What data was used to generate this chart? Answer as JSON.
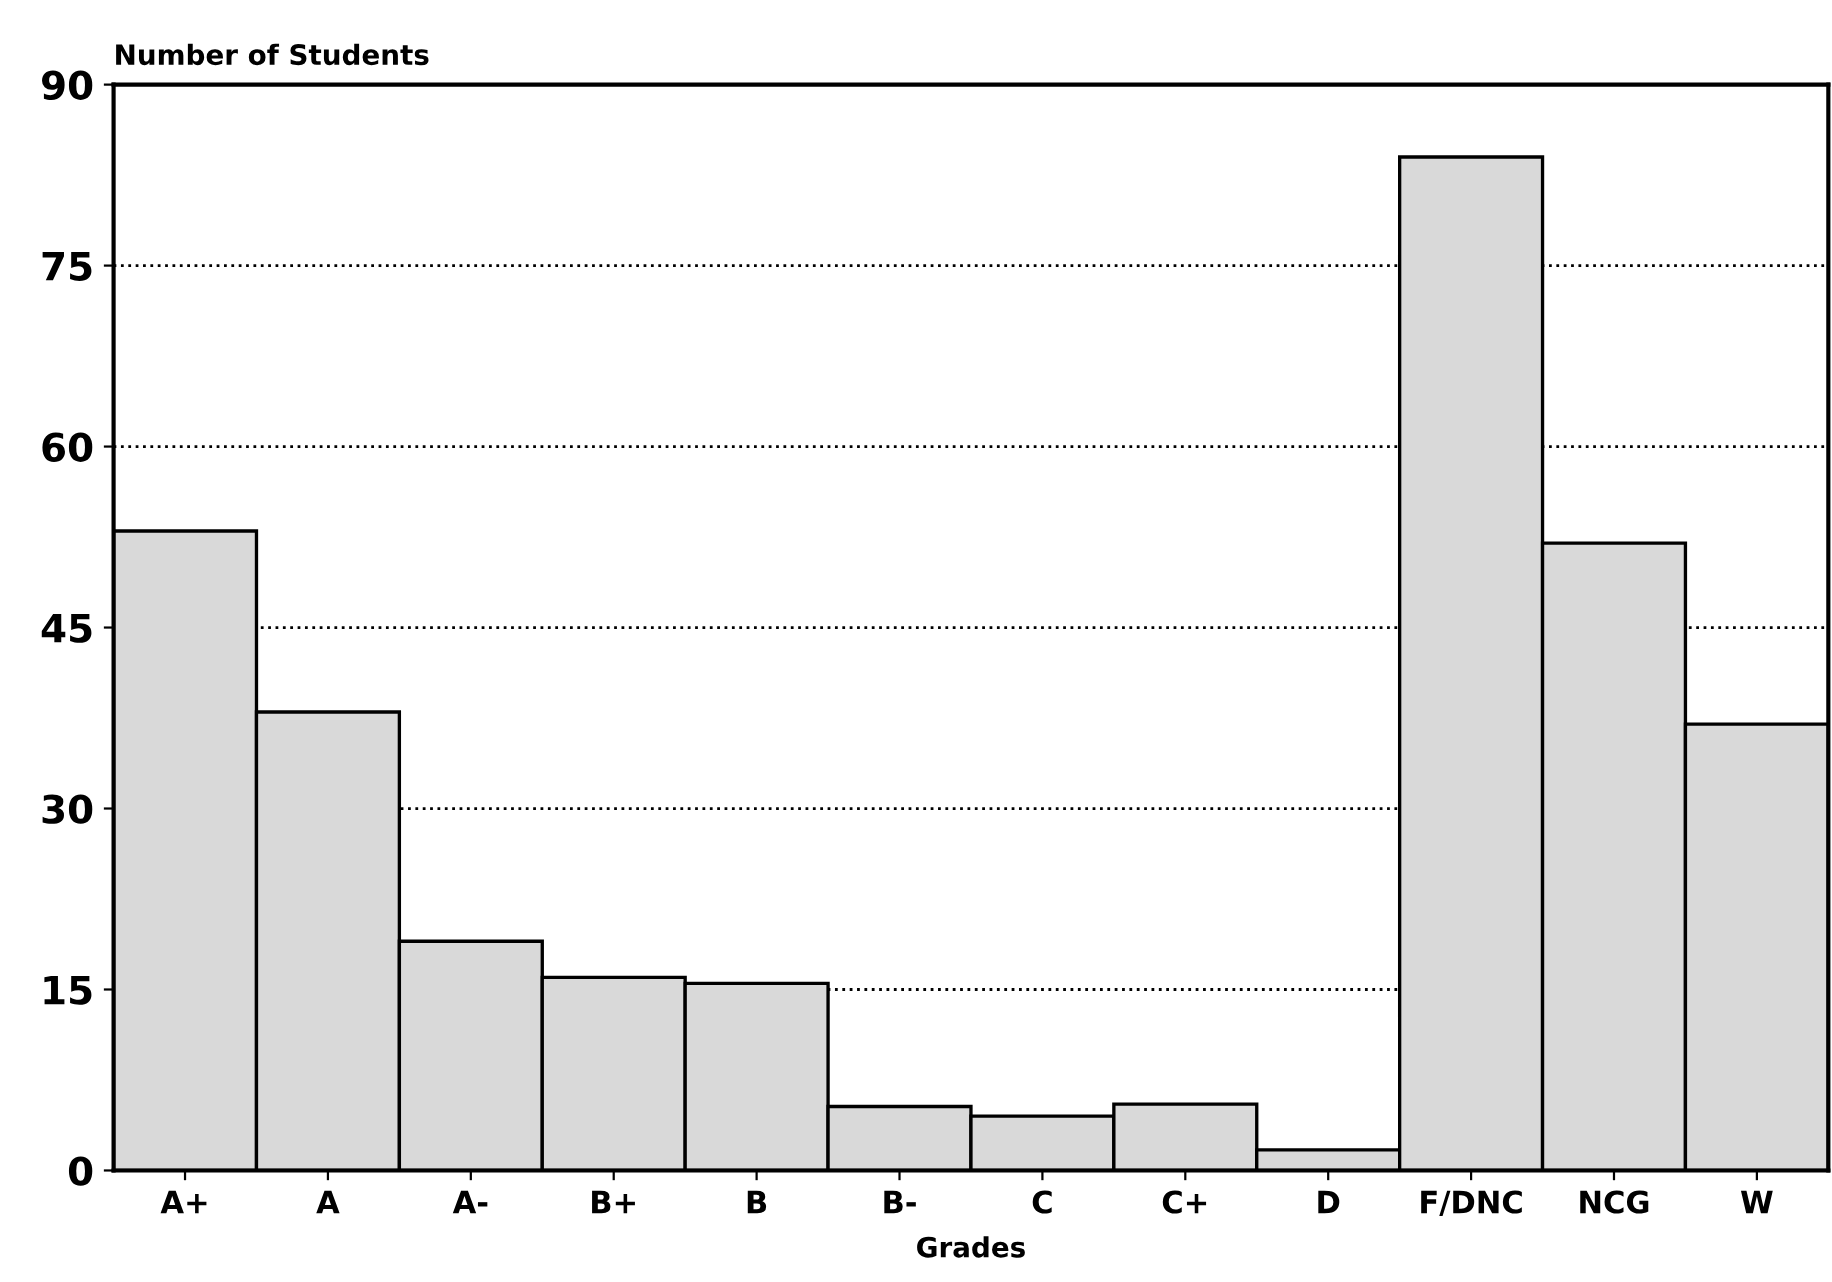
{
  "chart_data": {
    "type": "bar",
    "ylabel": "Number of Students",
    "xlabel": "Grades",
    "categories": [
      "A+",
      "A",
      "A-",
      "B+",
      "B",
      "B-",
      "C",
      "C+",
      "D",
      "F/DNC",
      "NCG",
      "W"
    ],
    "values": [
      53,
      38,
      19,
      16,
      15.5,
      5.3,
      4.5,
      5.5,
      1.7,
      84,
      52,
      37
    ],
    "color": "#d9d9d9",
    "ylim": [
      0,
      90
    ],
    "yticks": [
      0,
      15,
      30,
      45,
      60,
      75,
      90
    ],
    "grid": "y"
  }
}
